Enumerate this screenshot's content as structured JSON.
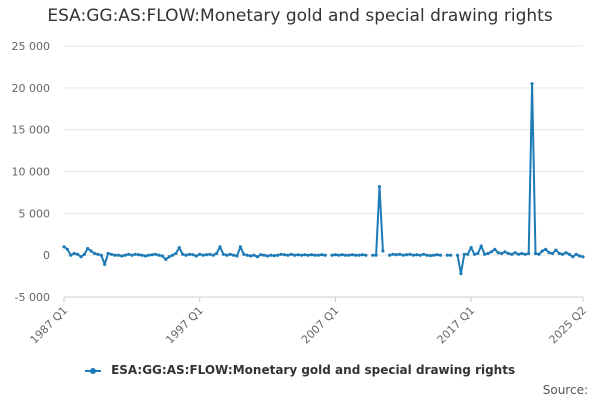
{
  "chart_data": {
    "type": "line",
    "title": "ESA:GG:AS:FLOW:Monetary gold and special drawing rights",
    "xlabel": "",
    "ylabel": "",
    "x_ticks": [
      "1987 Q1",
      "1997 Q1",
      "2007 Q1",
      "2017 Q1",
      "2025 Q2"
    ],
    "y_ticks": [
      -5000,
      0,
      5000,
      10000,
      15000,
      20000,
      25000
    ],
    "y_tick_labels": [
      "-5 000",
      "0",
      "5 000",
      "10 000",
      "15 000",
      "20 000",
      "25 000"
    ],
    "ylim": [
      -5000,
      25000
    ],
    "x_start": "1987 Q1",
    "x_end": "2025 Q2",
    "grid": "horizontal",
    "legend_position": "bottom",
    "source_label": "Source:",
    "series": [
      {
        "name": "ESA:GG:AS:FLOW:Monetary gold and special drawing rights",
        "color": "#1f7bb6",
        "points": [
          [
            "1987 Q1",
            1000
          ],
          [
            "1987 Q2",
            700
          ],
          [
            "1987 Q3",
            0
          ],
          [
            "1987 Q4",
            200
          ],
          [
            "1988 Q1",
            100
          ],
          [
            "1988 Q2",
            -200
          ],
          [
            "1988 Q3",
            100
          ],
          [
            "1988 Q4",
            800
          ],
          [
            "1989 Q1",
            500
          ],
          [
            "1989 Q2",
            200
          ],
          [
            "1989 Q3",
            100
          ],
          [
            "1989 Q4",
            0
          ],
          [
            "1990 Q1",
            -1100
          ],
          [
            "1990 Q2",
            200
          ],
          [
            "1990 Q3",
            100
          ],
          [
            "1990 Q4",
            0
          ],
          [
            "1991 Q1",
            0
          ],
          [
            "1991 Q2",
            -100
          ],
          [
            "1991 Q3",
            0
          ],
          [
            "1991 Q4",
            100
          ],
          [
            "1992 Q1",
            0
          ],
          [
            "1992 Q2",
            100
          ],
          [
            "1992 Q3",
            50
          ],
          [
            "1992 Q4",
            0
          ],
          [
            "1993 Q1",
            -100
          ],
          [
            "1993 Q2",
            0
          ],
          [
            "1993 Q3",
            50
          ],
          [
            "1993 Q4",
            100
          ],
          [
            "1994 Q1",
            0
          ],
          [
            "1994 Q2",
            -100
          ],
          [
            "1994 Q3",
            -500
          ],
          [
            "1994 Q4",
            -200
          ],
          [
            "1995 Q1",
            0
          ],
          [
            "1995 Q2",
            200
          ],
          [
            "1995 Q3",
            900
          ],
          [
            "1995 Q4",
            100
          ],
          [
            "1996 Q1",
            0
          ],
          [
            "1996 Q2",
            100
          ],
          [
            "1996 Q3",
            50
          ],
          [
            "1996 Q4",
            -100
          ],
          [
            "1997 Q1",
            100
          ],
          [
            "1997 Q2",
            0
          ],
          [
            "1997 Q3",
            50
          ],
          [
            "1997 Q4",
            100
          ],
          [
            "1998 Q1",
            0
          ],
          [
            "1998 Q2",
            200
          ],
          [
            "1998 Q3",
            1000
          ],
          [
            "1998 Q4",
            100
          ],
          [
            "1999 Q1",
            0
          ],
          [
            "1999 Q2",
            100
          ],
          [
            "1999 Q3",
            0
          ],
          [
            "1999 Q4",
            -100
          ],
          [
            "2000 Q1",
            1000
          ],
          [
            "2000 Q2",
            100
          ],
          [
            "2000 Q3",
            0
          ],
          [
            "2000 Q4",
            -100
          ],
          [
            "2001 Q1",
            0
          ],
          [
            "2001 Q2",
            -200
          ],
          [
            "2001 Q3",
            50
          ],
          [
            "2001 Q4",
            0
          ],
          [
            "2002 Q1",
            -100
          ],
          [
            "2002 Q2",
            0
          ],
          [
            "2002 Q3",
            -50
          ],
          [
            "2002 Q4",
            0
          ],
          [
            "2003 Q1",
            100
          ],
          [
            "2003 Q2",
            50
          ],
          [
            "2003 Q3",
            0
          ],
          [
            "2003 Q4",
            100
          ],
          [
            "2004 Q1",
            0
          ],
          [
            "2004 Q2",
            50
          ],
          [
            "2004 Q3",
            0
          ],
          [
            "2004 Q4",
            50
          ],
          [
            "2005 Q1",
            0
          ],
          [
            "2005 Q2",
            50
          ],
          [
            "2005 Q3",
            0
          ],
          [
            "2005 Q4",
            0
          ],
          [
            "2006 Q1",
            50
          ],
          [
            "2006 Q2",
            0
          ],
          [
            "2006 Q3",
            null
          ],
          [
            "2006 Q4",
            0
          ],
          [
            "2007 Q1",
            50
          ],
          [
            "2007 Q2",
            0
          ],
          [
            "2007 Q3",
            50
          ],
          [
            "2007 Q4",
            0
          ],
          [
            "2008 Q1",
            0
          ],
          [
            "2008 Q2",
            50
          ],
          [
            "2008 Q3",
            0
          ],
          [
            "2008 Q4",
            0
          ],
          [
            "2009 Q1",
            50
          ],
          [
            "2009 Q2",
            0
          ],
          [
            "2009 Q3",
            null
          ],
          [
            "2009 Q4",
            0
          ],
          [
            "2010 Q1",
            0
          ],
          [
            "2010 Q2",
            8200
          ],
          [
            "2010 Q3",
            500
          ],
          [
            "2010 Q4",
            null
          ],
          [
            "2011 Q1",
            0
          ],
          [
            "2011 Q2",
            100
          ],
          [
            "2011 Q3",
            50
          ],
          [
            "2011 Q4",
            100
          ],
          [
            "2012 Q1",
            0
          ],
          [
            "2012 Q2",
            50
          ],
          [
            "2012 Q3",
            100
          ],
          [
            "2012 Q4",
            0
          ],
          [
            "2013 Q1",
            50
          ],
          [
            "2013 Q2",
            0
          ],
          [
            "2013 Q3",
            100
          ],
          [
            "2013 Q4",
            0
          ],
          [
            "2014 Q1",
            -50
          ],
          [
            "2014 Q2",
            0
          ],
          [
            "2014 Q3",
            50
          ],
          [
            "2014 Q4",
            0
          ],
          [
            "2015 Q1",
            null
          ],
          [
            "2015 Q2",
            0
          ],
          [
            "2015 Q3",
            0
          ],
          [
            "2015 Q4",
            null
          ],
          [
            "2016 Q1",
            0
          ],
          [
            "2016 Q2",
            -2200
          ],
          [
            "2016 Q3",
            100
          ],
          [
            "2016 Q4",
            100
          ],
          [
            "2017 Q1",
            900
          ],
          [
            "2017 Q2",
            100
          ],
          [
            "2017 Q3",
            200
          ],
          [
            "2017 Q4",
            1100
          ],
          [
            "2018 Q1",
            100
          ],
          [
            "2018 Q2",
            200
          ],
          [
            "2018 Q3",
            400
          ],
          [
            "2018 Q4",
            700
          ],
          [
            "2019 Q1",
            300
          ],
          [
            "2019 Q2",
            200
          ],
          [
            "2019 Q3",
            400
          ],
          [
            "2019 Q4",
            200
          ],
          [
            "2020 Q1",
            100
          ],
          [
            "2020 Q2",
            300
          ],
          [
            "2020 Q3",
            100
          ],
          [
            "2020 Q4",
            200
          ],
          [
            "2021 Q1",
            100
          ],
          [
            "2021 Q2",
            200
          ],
          [
            "2021 Q3",
            20500
          ],
          [
            "2021 Q4",
            200
          ],
          [
            "2022 Q1",
            100
          ],
          [
            "2022 Q2",
            500
          ],
          [
            "2022 Q3",
            700
          ],
          [
            "2022 Q4",
            300
          ],
          [
            "2023 Q1",
            200
          ],
          [
            "2023 Q2",
            600
          ],
          [
            "2023 Q3",
            200
          ],
          [
            "2023 Q4",
            100
          ],
          [
            "2024 Q1",
            300
          ],
          [
            "2024 Q2",
            100
          ],
          [
            "2024 Q3",
            -200
          ],
          [
            "2024 Q4",
            100
          ],
          [
            "2025 Q1",
            -100
          ],
          [
            "2025 Q2",
            -200
          ]
        ]
      }
    ]
  }
}
